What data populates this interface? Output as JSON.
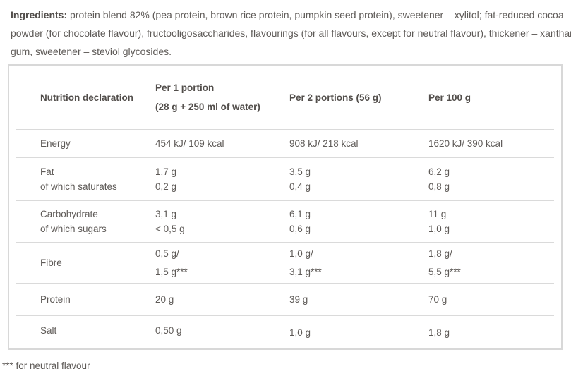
{
  "colors": {
    "text": "#5e5a57",
    "bold_text": "#524e4b",
    "separator_line": "#dadada",
    "table_border": "#d8d8d8",
    "background": "#ffffff"
  },
  "ingredients": {
    "bold_label": "Ingredients:",
    "line1": " protein blend 82% (pea protein, brown rice protein, pumpkin seed protein), sweetener – xylitol; fat-reduced cocoa",
    "line2": "powder (for chocolate flavour), fructooligosaccharides, flavourings (for all flavours, except for neutral flavour), thickener – xanthan",
    "line3": "gum, sweetener – steviol glycosides."
  },
  "table": {
    "header": {
      "col1": "Nutrition declaration",
      "col2_line1": "Per 1 portion",
      "col2_line2": "(28 g + 250 ml of water)",
      "col3": "Per 2 portions (56 g)",
      "col4": "Per 100 g"
    },
    "rows": [
      {
        "label_lines": [
          "Energy"
        ],
        "values": [
          [
            "454 kJ/ 109 kcal"
          ],
          [
            "908 kJ/ 218 kcal"
          ],
          [
            "1620 kJ/ 390 kcal"
          ]
        ]
      },
      {
        "label_lines": [
          "Fat",
          "of which saturates"
        ],
        "values": [
          [
            "1,7 g",
            "0,2 g"
          ],
          [
            "3,5 g",
            "0,4 g"
          ],
          [
            "6,2 g",
            "0,8 g"
          ]
        ]
      },
      {
        "label_lines": [
          "Carbohydrate",
          "of which sugars"
        ],
        "values": [
          [
            "3,1 g",
            "< 0,5 g"
          ],
          [
            "6,1 g",
            "0,6 g"
          ],
          [
            "11 g",
            "1,0 g"
          ]
        ]
      },
      {
        "label_lines": [
          "Fibre"
        ],
        "values": [
          [
            "0,5 g/",
            "1,5 g***"
          ],
          [
            "1,0 g/",
            "3,1 g***"
          ],
          [
            "1,8 g/",
            "5,5 g***"
          ]
        ]
      },
      {
        "label_lines": [
          "Protein"
        ],
        "values": [
          [
            "20 g"
          ],
          [
            "39 g"
          ],
          [
            "70 g"
          ]
        ]
      },
      {
        "label_lines": [
          "Salt"
        ],
        "values": [
          [
            "0,50 g"
          ],
          [
            "1,0 g"
          ],
          [
            "1,8 g"
          ]
        ]
      }
    ]
  },
  "footnote": "*** for neutral flavour"
}
